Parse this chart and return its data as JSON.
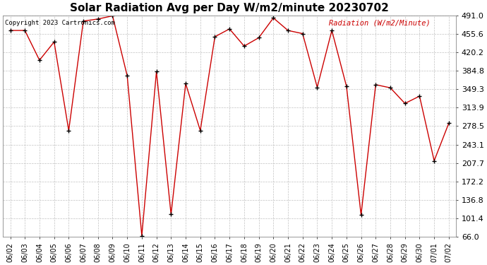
{
  "title": "Solar Radiation Avg per Day W/m2/minute 20230702",
  "copyright_text": "Copyright 2023 Cartronics.com",
  "legend_label": "Radiation (W/m2/Minute)",
  "dates": [
    "06/02",
    "06/03",
    "06/04",
    "06/05",
    "06/06",
    "06/07",
    "06/08",
    "06/09",
    "06/10",
    "06/11",
    "06/12",
    "06/13",
    "06/14",
    "06/15",
    "06/16",
    "06/17",
    "06/18",
    "06/19",
    "06/20",
    "06/21",
    "06/22",
    "06/23",
    "06/24",
    "06/25",
    "06/26",
    "06/27",
    "06/28",
    "06/29",
    "06/30",
    "07/01",
    "07/02"
  ],
  "values": [
    462,
    462,
    405,
    440,
    270,
    480,
    484,
    490,
    375,
    68,
    383,
    109,
    360,
    270,
    450,
    465,
    432,
    448,
    486,
    462,
    456,
    353,
    462,
    355,
    108,
    358,
    352,
    322,
    336,
    212,
    284
  ],
  "ymin": 66.0,
  "ymax": 491.0,
  "yticks": [
    66.0,
    101.4,
    136.8,
    172.2,
    207.7,
    243.1,
    278.5,
    313.9,
    349.3,
    384.8,
    420.2,
    455.6,
    491.0
  ],
  "line_color": "#cc0000",
  "marker_color": "#000000",
  "bg_color": "#ffffff",
  "grid_color": "#bbbbbb",
  "title_fontsize": 11,
  "tick_fontsize": 8,
  "copyright_color": "#000000",
  "legend_color": "#cc0000"
}
